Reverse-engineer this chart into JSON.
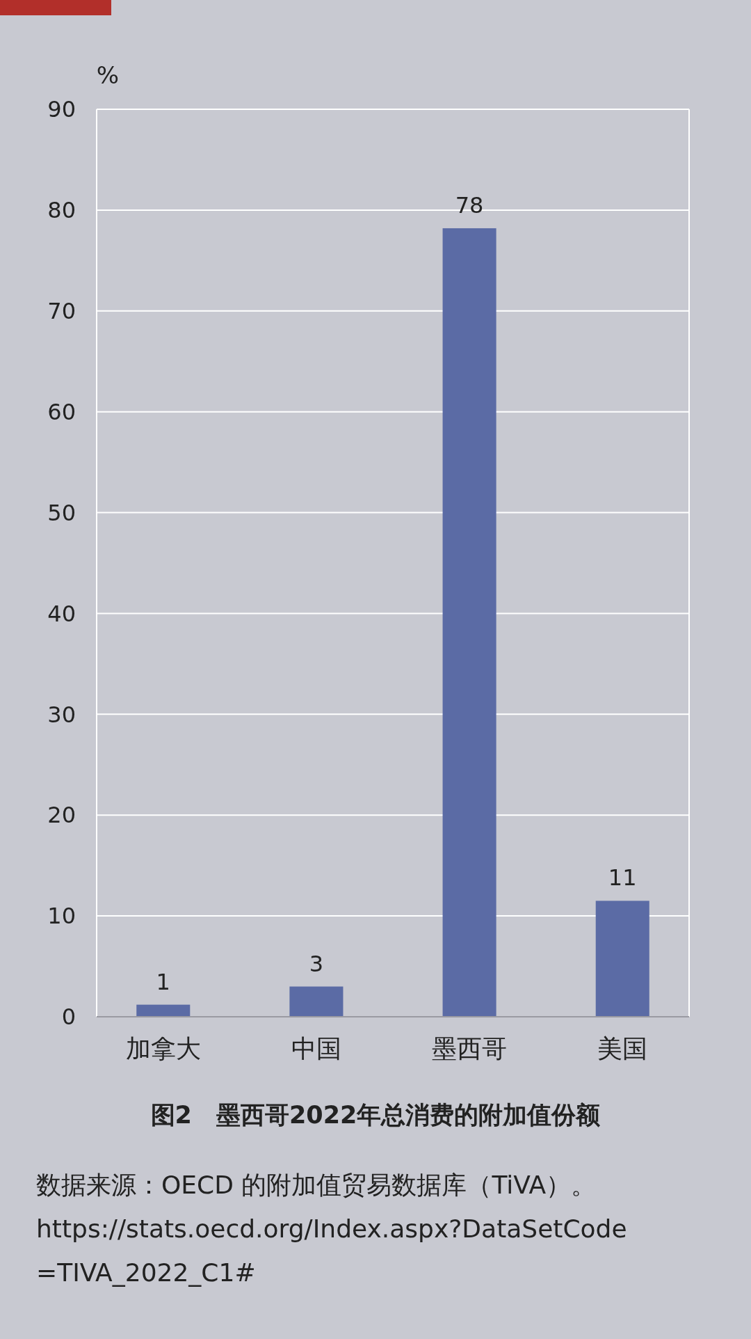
{
  "chart_data": {
    "type": "bar",
    "title": "图2　墨西哥2022年总消费的附加值份额",
    "ylabel": "%",
    "categories": [
      "加拿大",
      "中国",
      "墨西哥",
      "美国"
    ],
    "values": [
      1.2,
      3,
      78.2,
      11.5
    ],
    "value_labels": [
      "1",
      "3",
      "78",
      "11"
    ],
    "color": "#5b6ba5",
    "ylim": [
      0,
      90
    ],
    "yticks": [
      0,
      10,
      20,
      30,
      40,
      50,
      60,
      70,
      80,
      90
    ],
    "grid": "y",
    "annotations": [
      "数据来源：OECD 的附加值贸易数据库（TiVA）。",
      "https://stats.oecd.org/Index.aspx?DataSetCode",
      "=TIVA_2022_C1#"
    ]
  }
}
